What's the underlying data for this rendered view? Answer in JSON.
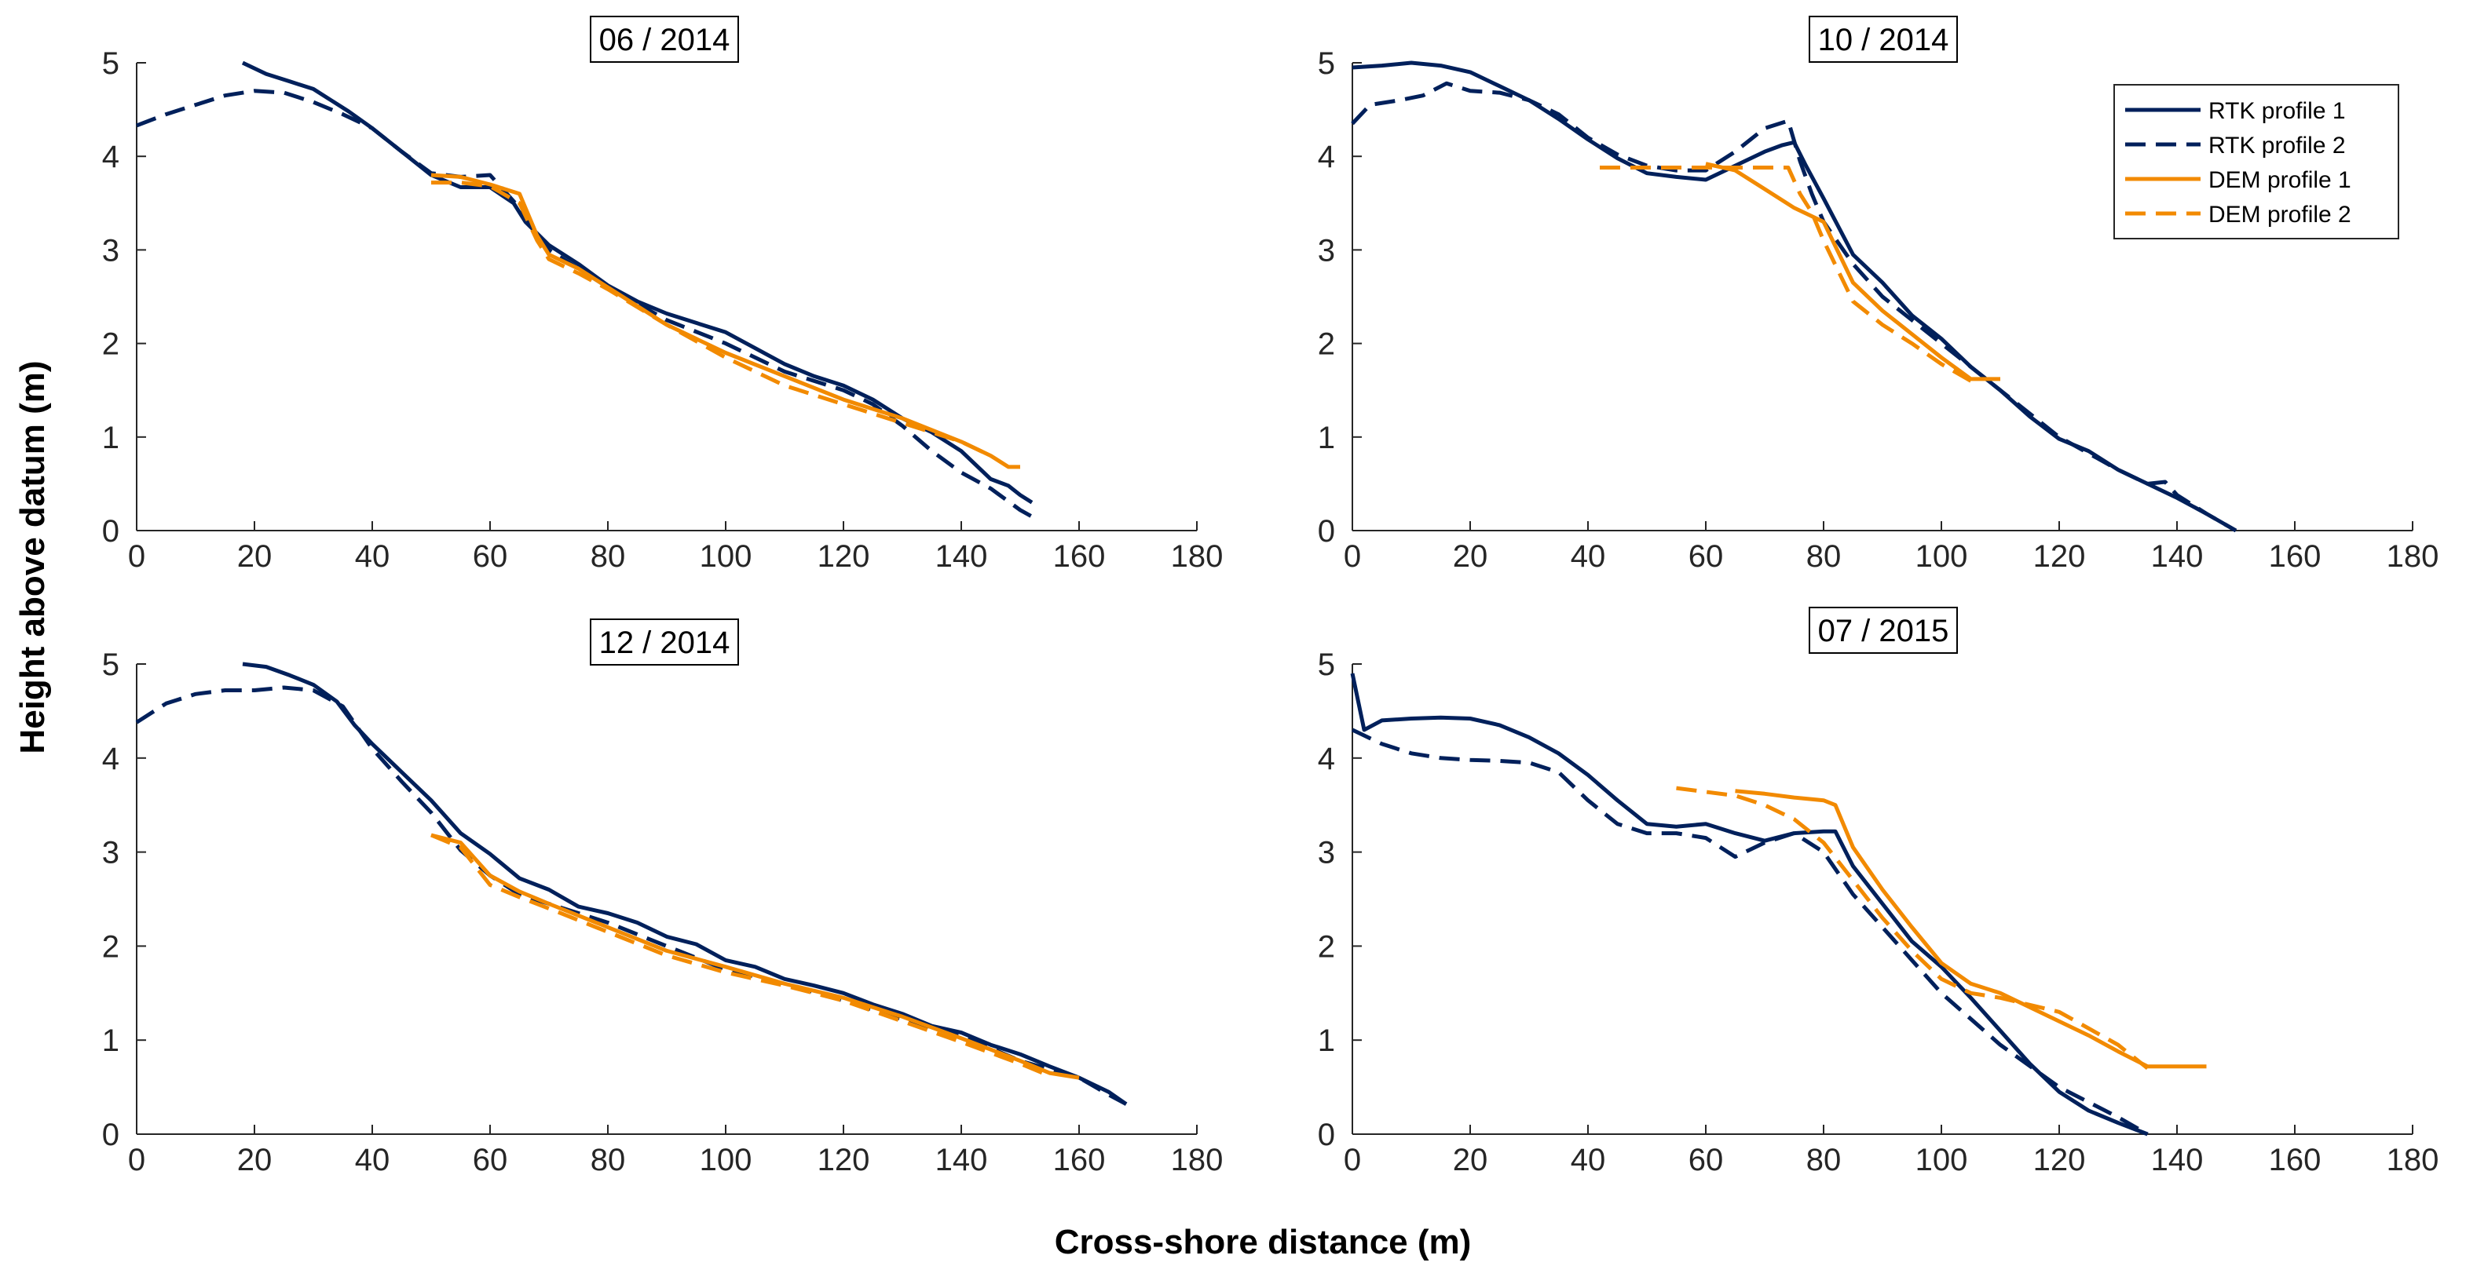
{
  "figure": {
    "ylabel": "Height above datum (m)",
    "xlabel": "Cross-shore distance (m)"
  },
  "legend": {
    "placement": "top-right",
    "entries": [
      {
        "label": "RTK profile 1",
        "color": "#00205b",
        "dash": "solid"
      },
      {
        "label": "RTK profile 2",
        "color": "#00205b",
        "dash": "dashed"
      },
      {
        "label": "DEM profile 1",
        "color": "#f28a00",
        "dash": "solid"
      },
      {
        "label": "DEM profile 2",
        "color": "#f28a00",
        "dash": "dashed"
      }
    ]
  },
  "chart_data": [
    {
      "type": "line",
      "title": "06 / 2014",
      "xlabel": "Cross-shore distance (m)",
      "ylabel": "Height above datum (m)",
      "xlim": [
        0,
        180
      ],
      "ylim": [
        0,
        5
      ],
      "xticks": [
        0,
        20,
        40,
        60,
        80,
        100,
        120,
        140,
        160,
        180
      ],
      "yticks": [
        0,
        1,
        2,
        3,
        4,
        5
      ],
      "series": [
        {
          "name": "RTK profile 1",
          "x": [
            18,
            22,
            26,
            30,
            33,
            36,
            40,
            45,
            50,
            55,
            60,
            64,
            66,
            70,
            75,
            80,
            85,
            90,
            95,
            100,
            105,
            110,
            115,
            120,
            125,
            130,
            135,
            140,
            145,
            148,
            150,
            152
          ],
          "y": [
            5.0,
            4.88,
            4.8,
            4.72,
            4.6,
            4.48,
            4.3,
            4.05,
            3.8,
            3.67,
            3.67,
            3.5,
            3.3,
            3.05,
            2.85,
            2.62,
            2.45,
            2.32,
            2.22,
            2.12,
            1.95,
            1.78,
            1.65,
            1.55,
            1.4,
            1.2,
            1.05,
            0.85,
            0.55,
            0.48,
            0.38,
            0.3
          ]
        },
        {
          "name": "RTK profile 2",
          "x": [
            0,
            5,
            10,
            15,
            20,
            25,
            30,
            35,
            40,
            45,
            50,
            55,
            60,
            65,
            70,
            75,
            80,
            90,
            100,
            110,
            120,
            125,
            130,
            135,
            140,
            145,
            150,
            152
          ],
          "y": [
            4.33,
            4.45,
            4.55,
            4.65,
            4.7,
            4.68,
            4.58,
            4.45,
            4.3,
            4.05,
            3.82,
            3.78,
            3.8,
            3.45,
            3.0,
            2.8,
            2.6,
            2.25,
            2.0,
            1.7,
            1.5,
            1.35,
            1.12,
            0.85,
            0.62,
            0.45,
            0.22,
            0.15
          ]
        },
        {
          "name": "DEM profile 1",
          "x": [
            50,
            55,
            60,
            65,
            68,
            70,
            75,
            80,
            85,
            90,
            100,
            110,
            120,
            130,
            140,
            145,
            148,
            150
          ],
          "y": [
            3.8,
            3.78,
            3.7,
            3.6,
            3.15,
            2.95,
            2.8,
            2.6,
            2.4,
            2.2,
            1.9,
            1.65,
            1.4,
            1.2,
            0.95,
            0.8,
            0.68,
            0.68
          ]
        },
        {
          "name": "DEM profile 2",
          "x": [
            50,
            55,
            60,
            65,
            68,
            70,
            75,
            80,
            90,
            100,
            110,
            120,
            130,
            140,
            145
          ],
          "y": [
            3.72,
            3.72,
            3.68,
            3.5,
            3.1,
            2.9,
            2.75,
            2.58,
            2.2,
            1.85,
            1.55,
            1.35,
            1.15,
            0.95,
            0.8
          ]
        }
      ]
    },
    {
      "type": "line",
      "title": "10 / 2014",
      "xlabel": "Cross-shore distance (m)",
      "ylabel": "Height above datum (m)",
      "xlim": [
        0,
        180
      ],
      "ylim": [
        0,
        5
      ],
      "xticks": [
        0,
        20,
        40,
        60,
        80,
        100,
        120,
        140,
        160,
        180
      ],
      "yticks": [
        0,
        1,
        2,
        3,
        4,
        5
      ],
      "series": [
        {
          "name": "RTK profile 1",
          "x": [
            0,
            5,
            10,
            15,
            20,
            25,
            30,
            35,
            40,
            45,
            50,
            55,
            60,
            65,
            70,
            73,
            75,
            77,
            80,
            85,
            90,
            95,
            100,
            105,
            110,
            115,
            120,
            125,
            130,
            135,
            140,
            145,
            150
          ],
          "y": [
            4.95,
            4.97,
            5.0,
            4.97,
            4.9,
            4.75,
            4.6,
            4.4,
            4.18,
            3.98,
            3.82,
            3.78,
            3.75,
            3.9,
            4.05,
            4.12,
            4.15,
            3.9,
            3.55,
            2.95,
            2.65,
            2.3,
            2.05,
            1.75,
            1.5,
            1.22,
            0.98,
            0.85,
            0.65,
            0.5,
            0.35,
            0.18,
            0.0
          ]
        },
        {
          "name": "RTK profile 2",
          "x": [
            0,
            3,
            8,
            12,
            16,
            20,
            25,
            30,
            35,
            40,
            45,
            50,
            55,
            60,
            65,
            70,
            74,
            76,
            78,
            80,
            85,
            90,
            100,
            110,
            120,
            130,
            135,
            138,
            140,
            145,
            150
          ],
          "y": [
            4.35,
            4.55,
            4.6,
            4.65,
            4.78,
            4.7,
            4.68,
            4.6,
            4.45,
            4.2,
            4.02,
            3.9,
            3.85,
            3.85,
            4.05,
            4.3,
            4.38,
            3.95,
            3.6,
            3.3,
            2.85,
            2.5,
            2.0,
            1.5,
            1.0,
            0.65,
            0.5,
            0.52,
            0.38,
            0.18,
            0.0
          ]
        },
        {
          "name": "DEM profile 1",
          "x": [
            60,
            65,
            70,
            75,
            80,
            85,
            90,
            95,
            100,
            105,
            110
          ],
          "y": [
            3.92,
            3.85,
            3.65,
            3.45,
            3.3,
            2.65,
            2.35,
            2.1,
            1.85,
            1.62,
            1.62
          ]
        },
        {
          "name": "DEM profile 2",
          "x": [
            42,
            50,
            60,
            70,
            74,
            76,
            78,
            80,
            85,
            90,
            95,
            100,
            105
          ],
          "y": [
            3.88,
            3.88,
            3.88,
            3.88,
            3.88,
            3.6,
            3.4,
            3.1,
            2.45,
            2.2,
            2.0,
            1.78,
            1.6
          ]
        }
      ]
    },
    {
      "type": "line",
      "title": "12 / 2014",
      "xlabel": "Cross-shore distance (m)",
      "ylabel": "Height above datum (m)",
      "xlim": [
        0,
        180
      ],
      "ylim": [
        0,
        5
      ],
      "xticks": [
        0,
        20,
        40,
        60,
        80,
        100,
        120,
        140,
        160,
        180
      ],
      "yticks": [
        0,
        1,
        2,
        3,
        4,
        5
      ],
      "series": [
        {
          "name": "RTK profile 1",
          "x": [
            18,
            22,
            26,
            30,
            34,
            37,
            40,
            45,
            50,
            55,
            60,
            65,
            70,
            75,
            80,
            85,
            90,
            95,
            100,
            105,
            110,
            115,
            120,
            125,
            130,
            135,
            140,
            145,
            150,
            155,
            160,
            165,
            168
          ],
          "y": [
            5.0,
            4.97,
            4.88,
            4.78,
            4.6,
            4.35,
            4.15,
            3.85,
            3.55,
            3.2,
            2.98,
            2.72,
            2.6,
            2.42,
            2.35,
            2.25,
            2.1,
            2.02,
            1.85,
            1.78,
            1.65,
            1.58,
            1.5,
            1.38,
            1.28,
            1.15,
            1.08,
            0.95,
            0.85,
            0.72,
            0.6,
            0.45,
            0.32
          ]
        },
        {
          "name": "RTK profile 2",
          "x": [
            0,
            5,
            10,
            15,
            20,
            25,
            30,
            35,
            40,
            45,
            50,
            55,
            60,
            65,
            70,
            80,
            90,
            100,
            110,
            120,
            130,
            140,
            150,
            160,
            165,
            168
          ],
          "y": [
            4.38,
            4.58,
            4.68,
            4.72,
            4.72,
            4.75,
            4.72,
            4.55,
            4.1,
            3.75,
            3.42,
            3.02,
            2.75,
            2.55,
            2.45,
            2.25,
            2.0,
            1.75,
            1.6,
            1.42,
            1.22,
            1.05,
            0.78,
            0.6,
            0.42,
            0.32
          ]
        },
        {
          "name": "DEM profile 1",
          "x": [
            50,
            55,
            60,
            65,
            70,
            80,
            90,
            100,
            110,
            120,
            130,
            140,
            150,
            155,
            160
          ],
          "y": [
            3.18,
            3.1,
            2.75,
            2.58,
            2.45,
            2.2,
            1.95,
            1.78,
            1.6,
            1.45,
            1.25,
            1.02,
            0.78,
            0.65,
            0.6
          ]
        },
        {
          "name": "DEM profile 2",
          "x": [
            50,
            55,
            60,
            65,
            70,
            80,
            90,
            100,
            110,
            120,
            130,
            140,
            150,
            155
          ],
          "y": [
            3.18,
            3.05,
            2.65,
            2.52,
            2.4,
            2.15,
            1.9,
            1.72,
            1.58,
            1.42,
            1.2,
            0.98,
            0.75,
            0.62
          ]
        }
      ]
    },
    {
      "type": "line",
      "title": "07 / 2015",
      "xlabel": "Cross-shore distance (m)",
      "ylabel": "Height above datum (m)",
      "xlim": [
        0,
        180
      ],
      "ylim": [
        0,
        5
      ],
      "xticks": [
        0,
        20,
        40,
        60,
        80,
        100,
        120,
        140,
        160,
        180
      ],
      "yticks": [
        0,
        1,
        2,
        3,
        4,
        5
      ],
      "series": [
        {
          "name": "RTK profile 1",
          "x": [
            0,
            2,
            5,
            10,
            15,
            20,
            25,
            30,
            35,
            40,
            45,
            50,
            55,
            60,
            65,
            70,
            75,
            80,
            82,
            85,
            90,
            95,
            100,
            105,
            110,
            115,
            120,
            125,
            130,
            135
          ],
          "y": [
            4.9,
            4.3,
            4.4,
            4.42,
            4.43,
            4.42,
            4.35,
            4.22,
            4.05,
            3.82,
            3.55,
            3.3,
            3.27,
            3.3,
            3.2,
            3.12,
            3.2,
            3.22,
            3.22,
            2.85,
            2.45,
            2.05,
            1.78,
            1.45,
            1.1,
            0.75,
            0.45,
            0.25,
            0.12,
            0.0
          ]
        },
        {
          "name": "RTK profile 2",
          "x": [
            0,
            5,
            10,
            15,
            20,
            25,
            30,
            35,
            40,
            45,
            50,
            55,
            60,
            65,
            70,
            75,
            80,
            85,
            90,
            95,
            100,
            110,
            120,
            130,
            135
          ],
          "y": [
            4.3,
            4.15,
            4.05,
            4.0,
            3.98,
            3.97,
            3.95,
            3.85,
            3.55,
            3.3,
            3.2,
            3.2,
            3.15,
            2.95,
            3.1,
            3.2,
            3.0,
            2.55,
            2.2,
            1.85,
            1.5,
            0.95,
            0.5,
            0.18,
            0.0
          ]
        },
        {
          "name": "DEM profile 1",
          "x": [
            65,
            70,
            75,
            80,
            82,
            85,
            90,
            95,
            100,
            105,
            110,
            115,
            120,
            125,
            130,
            135,
            140,
            145
          ],
          "y": [
            3.65,
            3.62,
            3.58,
            3.55,
            3.5,
            3.05,
            2.6,
            2.2,
            1.82,
            1.6,
            1.5,
            1.35,
            1.2,
            1.05,
            0.88,
            0.72,
            0.72,
            0.72
          ]
        },
        {
          "name": "DEM profile 2",
          "x": [
            55,
            65,
            70,
            75,
            80,
            85,
            90,
            95,
            100,
            105,
            110,
            120,
            130,
            135
          ],
          "y": [
            3.68,
            3.6,
            3.5,
            3.35,
            3.1,
            2.7,
            2.3,
            1.95,
            1.65,
            1.5,
            1.45,
            1.3,
            0.95,
            0.7
          ]
        }
      ]
    }
  ]
}
